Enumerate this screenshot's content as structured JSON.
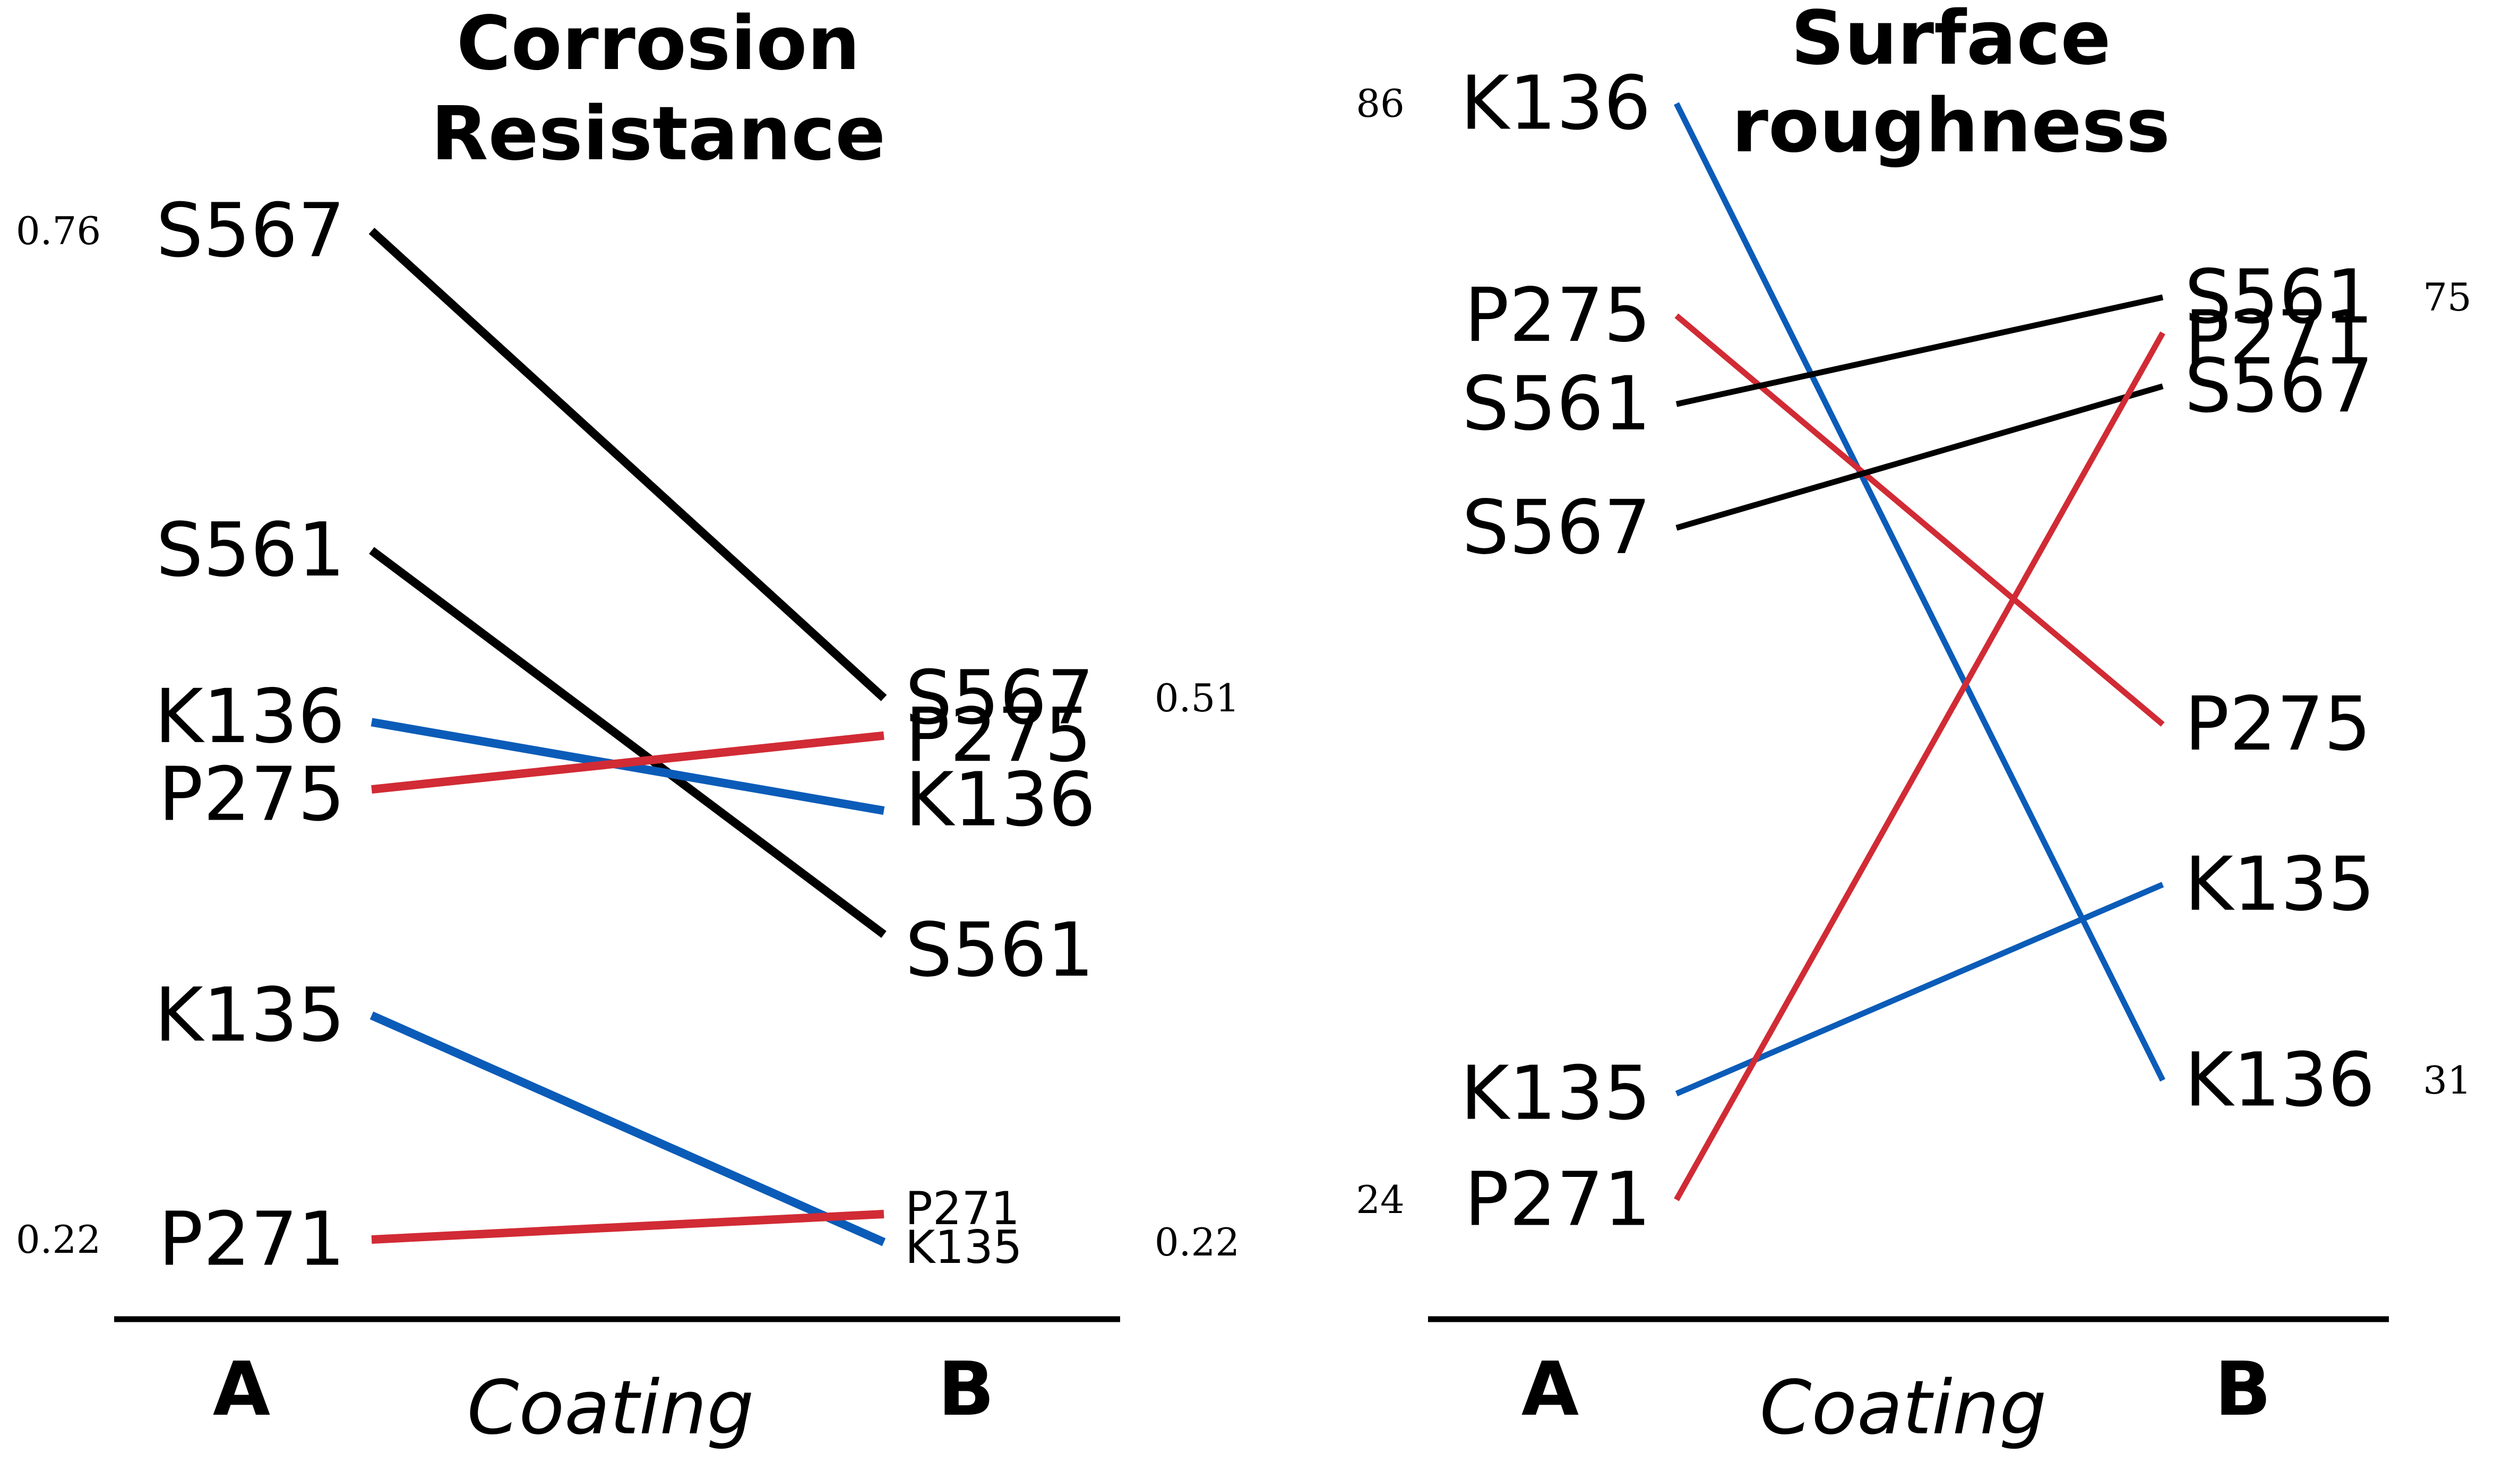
{
  "colors": {
    "Black": "#000000",
    "Blue": "#0b5cb8",
    "Red": "#d12b35"
  },
  "chart_data": [
    {
      "type": "slope",
      "title": "Corrosion Resistance",
      "xlabel": "Coating",
      "x": [
        "A",
        "B"
      ],
      "left_range_labels": [
        "0.76",
        "0.22"
      ],
      "right_range_labels": [
        "0.51",
        "0.22"
      ],
      "series": [
        {
          "name": "S567",
          "values": [
            0.76,
            0.51
          ],
          "color": "Black"
        },
        {
          "name": "S561",
          "values": [
            0.589,
            0.384
          ],
          "color": "Black"
        },
        {
          "name": "K136",
          "values": [
            0.497,
            0.45
          ],
          "color": "Blue"
        },
        {
          "name": "P275",
          "values": [
            0.461,
            0.49
          ],
          "color": "Red"
        },
        {
          "name": "K135",
          "values": [
            0.34,
            0.22
          ],
          "color": "Blue"
        },
        {
          "name": "P271",
          "values": [
            0.22,
            0.235
          ],
          "color": "Red"
        }
      ]
    },
    {
      "type": "slope",
      "title": "Surface roughness",
      "xlabel": "Coating",
      "x": [
        "A",
        "B"
      ],
      "left_range_labels": [
        "86",
        "24"
      ],
      "right_range_labels": [
        "75",
        "31"
      ],
      "series": [
        {
          "name": "K136",
          "values": [
            86,
            31
          ],
          "color": "Blue"
        },
        {
          "name": "P275",
          "values": [
            74,
            51
          ],
          "color": "Red"
        },
        {
          "name": "S561",
          "values": [
            69,
            75
          ],
          "color": "Black"
        },
        {
          "name": "S567",
          "values": [
            62,
            70
          ],
          "color": "Black"
        },
        {
          "name": "K135",
          "values": [
            30,
            42
          ],
          "color": "Blue"
        },
        {
          "name": "P271",
          "values": [
            24,
            73
          ],
          "color": "Red"
        }
      ]
    }
  ]
}
